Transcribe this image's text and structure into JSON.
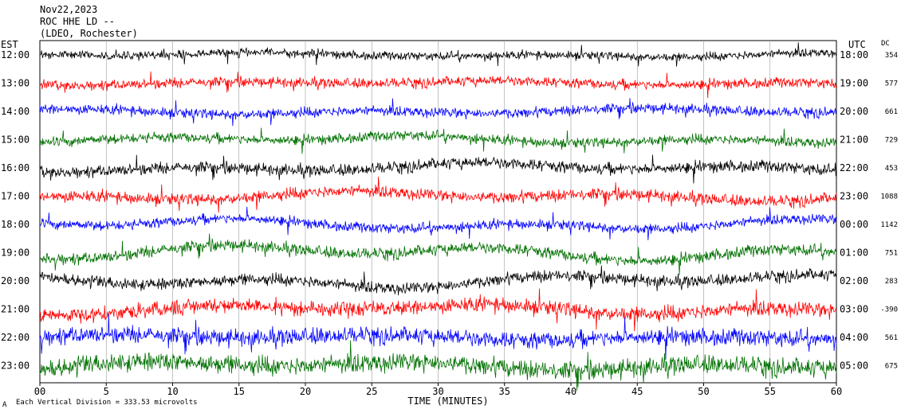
{
  "header": {
    "line1": "Nov22,2023",
    "line2": "ROC HHE LD --",
    "line3": "(LDEO, Rochester)"
  },
  "left_axis_label": "EST",
  "right_axis_label": "UTC",
  "dc_label": "DC",
  "footer": {
    "scale_note": "Each Vertical Division = 333.53 microvolts",
    "corner_mark": "A"
  },
  "colors": {
    "trace_cycle": [
      "#000000",
      "#ff0000",
      "#0000ff",
      "#007000"
    ],
    "gridline": "#9a9a9a"
  },
  "chart_data": {
    "type": "line",
    "title": "",
    "xlabel": "TIME (MINUTES)",
    "xlim": [
      0,
      60
    ],
    "x_ticks": [
      0,
      5,
      10,
      15,
      20,
      25,
      30,
      35,
      40,
      45,
      50,
      55,
      60
    ],
    "x_tick_labels": [
      "00",
      "5",
      "10",
      "15",
      "20",
      "25",
      "30",
      "35",
      "40",
      "45",
      "50",
      "55",
      "60"
    ],
    "grid_x": true,
    "rows": [
      {
        "est": "12:00",
        "utc": "18:00",
        "dc": "354"
      },
      {
        "est": "13:00",
        "utc": "19:00",
        "dc": "577"
      },
      {
        "est": "14:00",
        "utc": "20:00",
        "dc": "661"
      },
      {
        "est": "15:00",
        "utc": "21:00",
        "dc": "729"
      },
      {
        "est": "16:00",
        "utc": "22:00",
        "dc": "453"
      },
      {
        "est": "17:00",
        "utc": "23:00",
        "dc": "1088"
      },
      {
        "est": "18:00",
        "utc": "00:00",
        "dc": "1142"
      },
      {
        "est": "19:00",
        "utc": "01:00",
        "dc": "751"
      },
      {
        "est": "20:00",
        "utc": "02:00",
        "dc": "283"
      },
      {
        "est": "21:00",
        "utc": "03:00",
        "dc": "-390"
      },
      {
        "est": "22:00",
        "utc": "04:00",
        "dc": "561"
      },
      {
        "est": "23:00",
        "utc": "05:00",
        "dc": "675"
      }
    ]
  }
}
